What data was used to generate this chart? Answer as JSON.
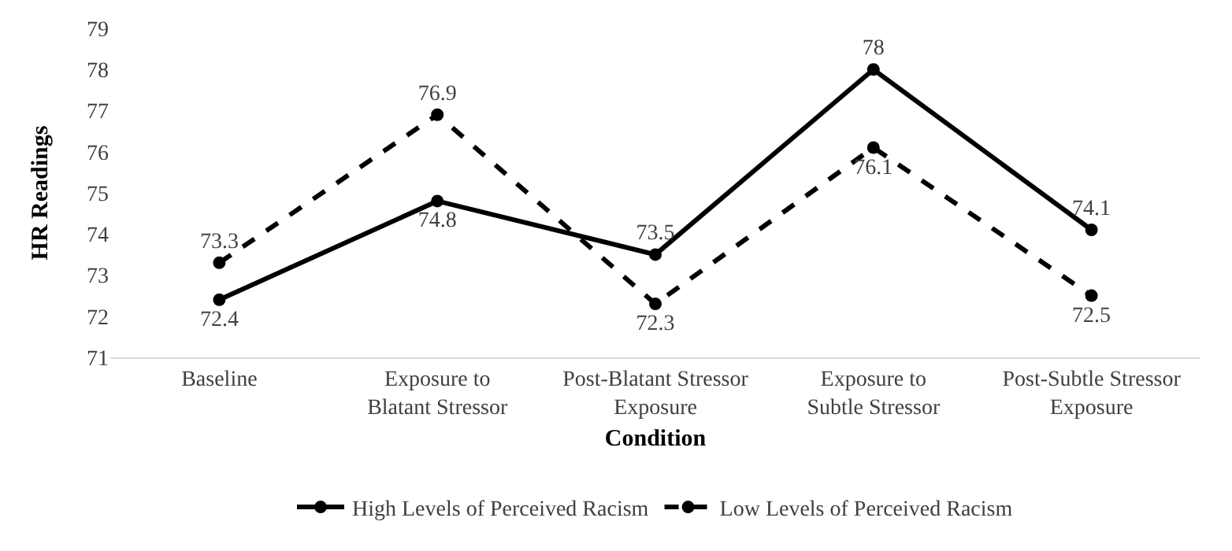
{
  "chart_data": {
    "type": "line",
    "xlabel": "Condition",
    "ylabel": "HR Readings",
    "categories": [
      "Baseline",
      "Exposure to Blatant Stressor",
      "Post-Blatant Stressor Exposure",
      "Exposure to Subtle Stressor",
      "Post-Subtle Stressor Exposure"
    ],
    "series": [
      {
        "name": "High Levels of Perceived Racism",
        "color": "#000000",
        "line_style": "solid",
        "values": [
          72.4,
          74.8,
          73.5,
          78,
          74.1
        ]
      },
      {
        "name": "Low Levels of Perceived Racism",
        "color": "#000000",
        "line_style": "dashed",
        "values": [
          73.3,
          76.9,
          72.3,
          76.1,
          72.5
        ]
      }
    ],
    "ylim": [
      71,
      79
    ],
    "yticks": [
      71,
      72,
      73,
      74,
      75,
      76,
      77,
      78,
      79
    ],
    "grid": false,
    "legend": "bottom",
    "marker": "circle",
    "data_labels": true
  }
}
